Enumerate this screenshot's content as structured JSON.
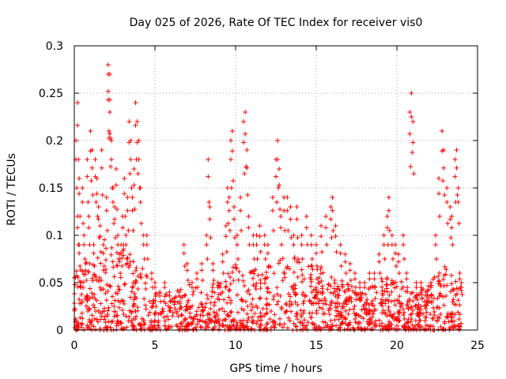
{
  "chart_data": {
    "type": "scatter",
    "title": "Day 025 of 2026, Rate Of TEC Index for receiver vis0",
    "xlabel": "GPS time / hours",
    "ylabel": "ROTI / TECUs",
    "xlim": [
      0,
      25
    ],
    "ylim": [
      0,
      0.3
    ],
    "xticks": [
      0,
      5,
      10,
      15,
      20,
      25
    ],
    "xtick_labels": [
      "0",
      "5",
      "10",
      "15",
      "20",
      "25"
    ],
    "yticks": [
      0,
      0.05,
      0.1,
      0.15,
      0.2,
      0.25,
      0.3
    ],
    "ytick_labels": [
      "0",
      "0.05",
      "0.1",
      "0.15",
      "0.2",
      "0.25",
      "0.3"
    ],
    "grid": true,
    "marker": "+",
    "color": "#ff0000",
    "series": [
      {
        "name": "ROTI",
        "points": [
          [
            0.1,
            0.2
          ],
          [
            0.2,
            0.24
          ],
          [
            0.2,
            0.12
          ],
          [
            0.3,
            0.16
          ],
          [
            0.3,
            0.09
          ],
          [
            0.4,
            0.05
          ],
          [
            0.5,
            0.15
          ],
          [
            0.6,
            0.1
          ],
          [
            0.7,
            0.07
          ],
          [
            0.8,
            0.18
          ],
          [
            0.9,
            0.12
          ],
          [
            1.0,
            0.21
          ],
          [
            1.1,
            0.19
          ],
          [
            1.2,
            0.09
          ],
          [
            1.3,
            0.18
          ],
          [
            1.4,
            0.16
          ],
          [
            1.5,
            0.13
          ],
          [
            1.6,
            0.11
          ],
          [
            1.7,
            0.19
          ],
          [
            1.8,
            0.09
          ],
          [
            2.0,
            0.14
          ],
          [
            2.1,
            0.28
          ],
          [
            2.1,
            0.27
          ],
          [
            2.2,
            0.27
          ],
          [
            2.2,
            0.23
          ],
          [
            2.3,
            0.2
          ],
          [
            2.4,
            0.15
          ],
          [
            2.5,
            0.13
          ],
          [
            2.6,
            0.17
          ],
          [
            2.7,
            0.1
          ],
          [
            2.8,
            0.08
          ],
          [
            2.9,
            0.09
          ],
          [
            3.0,
            0.12
          ],
          [
            3.1,
            0.16
          ],
          [
            3.2,
            0.1
          ],
          [
            3.3,
            0.14
          ],
          [
            3.4,
            0.22
          ],
          [
            3.5,
            0.2
          ],
          [
            3.6,
            0.14
          ],
          [
            3.7,
            0.17
          ],
          [
            3.8,
            0.24
          ],
          [
            3.9,
            0.22
          ],
          [
            4.0,
            0.2
          ],
          [
            4.1,
            0.15
          ],
          [
            4.3,
            0.1
          ],
          [
            4.5,
            0.1
          ],
          [
            4.8,
            0.06
          ],
          [
            5.0,
            0.05
          ],
          [
            5.3,
            0.04
          ],
          [
            5.6,
            0.05
          ],
          [
            5.9,
            0.04
          ],
          [
            6.2,
            0.03
          ],
          [
            6.5,
            0.04
          ],
          [
            6.8,
            0.09
          ],
          [
            7.0,
            0.07
          ],
          [
            7.3,
            0.05
          ],
          [
            7.6,
            0.06
          ],
          [
            7.9,
            0.07
          ],
          [
            8.2,
            0.1
          ],
          [
            8.3,
            0.18
          ],
          [
            8.4,
            0.13
          ],
          [
            8.6,
            0.07
          ],
          [
            8.9,
            0.05
          ],
          [
            9.2,
            0.08
          ],
          [
            9.4,
            0.11
          ],
          [
            9.5,
            0.15
          ],
          [
            9.6,
            0.14
          ],
          [
            9.7,
            0.2
          ],
          [
            9.8,
            0.21
          ],
          [
            9.9,
            0.13
          ],
          [
            10.1,
            0.1
          ],
          [
            10.3,
            0.14
          ],
          [
            10.5,
            0.22
          ],
          [
            10.6,
            0.23
          ],
          [
            10.7,
            0.19
          ],
          [
            10.8,
            0.12
          ],
          [
            11.1,
            0.1
          ],
          [
            11.3,
            0.1
          ],
          [
            11.5,
            0.11
          ],
          [
            11.8,
            0.1
          ],
          [
            12.0,
            0.09
          ],
          [
            12.3,
            0.14
          ],
          [
            12.5,
            0.18
          ],
          [
            12.6,
            0.2
          ],
          [
            12.7,
            0.17
          ],
          [
            12.8,
            0.12
          ],
          [
            13.0,
            0.14
          ],
          [
            13.2,
            0.14
          ],
          [
            13.4,
            0.13
          ],
          [
            13.6,
            0.1
          ],
          [
            13.8,
            0.13
          ],
          [
            14.1,
            0.1
          ],
          [
            14.4,
            0.12
          ],
          [
            14.7,
            0.1
          ],
          [
            15.0,
            0.09
          ],
          [
            15.3,
            0.11
          ],
          [
            15.6,
            0.12
          ],
          [
            15.9,
            0.13
          ],
          [
            16.0,
            0.14
          ],
          [
            16.2,
            0.11
          ],
          [
            16.5,
            0.09
          ],
          [
            16.8,
            0.08
          ],
          [
            17.1,
            0.07
          ],
          [
            17.4,
            0.06
          ],
          [
            17.7,
            0.05
          ],
          [
            18.0,
            0.05
          ],
          [
            18.3,
            0.06
          ],
          [
            18.6,
            0.06
          ],
          [
            18.9,
            0.08
          ],
          [
            19.2,
            0.1
          ],
          [
            19.4,
            0.12
          ],
          [
            19.5,
            0.14
          ],
          [
            19.7,
            0.1
          ],
          [
            19.9,
            0.09
          ],
          [
            20.1,
            0.08
          ],
          [
            20.4,
            0.1
          ],
          [
            20.6,
            0.06
          ],
          [
            20.8,
            0.23
          ],
          [
            20.9,
            0.25
          ],
          [
            21.0,
            0.22
          ],
          [
            21.2,
            0.05
          ],
          [
            21.5,
            0.05
          ],
          [
            21.8,
            0.04
          ],
          [
            22.1,
            0.05
          ],
          [
            22.4,
            0.1
          ],
          [
            22.6,
            0.16
          ],
          [
            22.8,
            0.21
          ],
          [
            22.9,
            0.19
          ],
          [
            23.1,
            0.15
          ],
          [
            23.3,
            0.13
          ],
          [
            23.4,
            0.12
          ],
          [
            23.6,
            0.18
          ],
          [
            23.7,
            0.19
          ],
          [
            23.8,
            0.15
          ],
          [
            23.9,
            0.06
          ],
          [
            24.0,
            0.05
          ]
        ],
        "noise_band": [
          [
            0,
            0.045
          ],
          [
            1,
            0.06
          ],
          [
            2,
            0.07
          ],
          [
            3,
            0.065
          ],
          [
            4,
            0.055
          ],
          [
            5,
            0.03
          ],
          [
            6,
            0.028
          ],
          [
            7,
            0.035
          ],
          [
            8,
            0.03
          ],
          [
            9,
            0.04
          ],
          [
            10,
            0.05
          ],
          [
            11,
            0.045
          ],
          [
            12,
            0.05
          ],
          [
            13,
            0.06
          ],
          [
            14,
            0.055
          ],
          [
            15,
            0.05
          ],
          [
            16,
            0.045
          ],
          [
            17,
            0.035
          ],
          [
            18,
            0.03
          ],
          [
            19,
            0.04
          ],
          [
            20,
            0.04
          ],
          [
            21,
            0.03
          ],
          [
            22,
            0.035
          ],
          [
            23,
            0.05
          ],
          [
            24,
            0.03
          ]
        ],
        "noise_density": 14
      }
    ]
  }
}
